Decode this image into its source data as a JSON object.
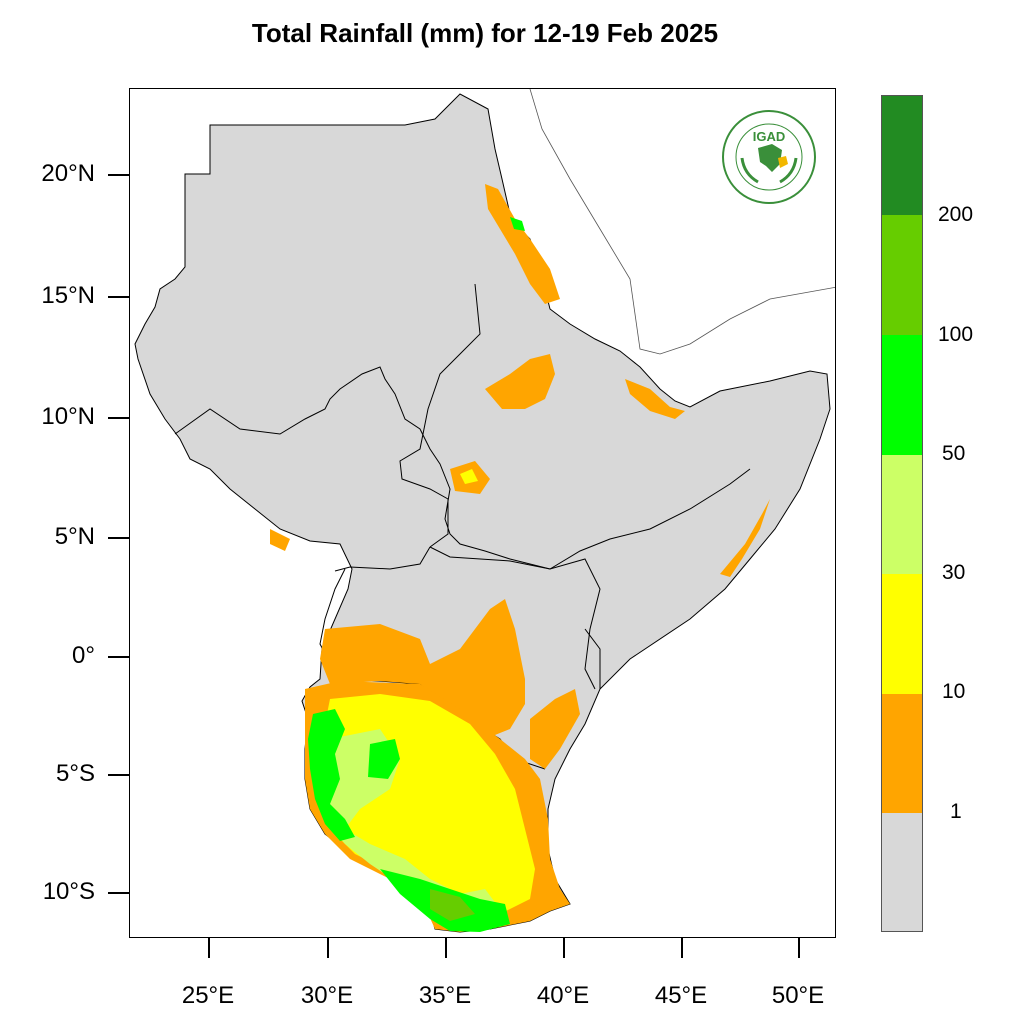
{
  "title": "Total Rainfall (mm) for 12-19 Feb 2025",
  "logo": {
    "text": "IGAD",
    "ring_text": "INTERGOVERNMENTAL AUTHORITY ON DEVELOPMENT",
    "icon": "igad-logo"
  },
  "lat_labels": [
    "20°N",
    "15°N",
    "10°N",
    "5°N",
    "0°",
    "5°S",
    "10°S"
  ],
  "lon_labels": [
    "25°E",
    "30°E",
    "35°E",
    "40°E",
    "45°E",
    "50°E"
  ],
  "legend": {
    "labels": [
      "200",
      "100",
      "50",
      "30",
      "10",
      "1"
    ],
    "colors": [
      "#228B22",
      "#66CD00",
      "#00FF00",
      "#CCFF66",
      "#FFFF00",
      "#FFA500",
      "#D8D8D8"
    ]
  },
  "map_colors": {
    "land": "#D8D8D8",
    "c1": "#FFA500",
    "c2": "#FFFF00",
    "c3": "#CCFF66",
    "c4": "#00FF00",
    "c5": "#66CD00"
  }
}
